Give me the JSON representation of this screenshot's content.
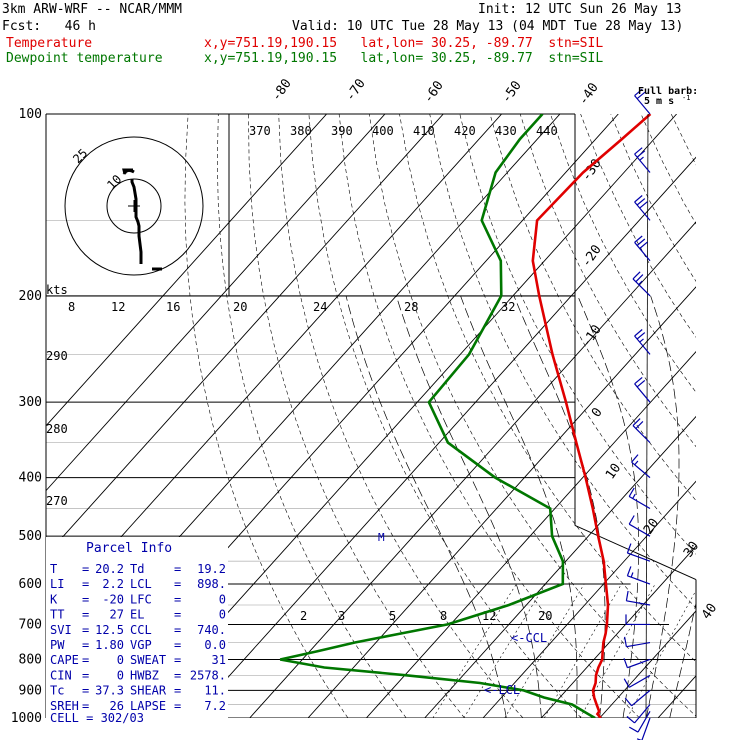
{
  "header": {
    "model": "3km ARW-WRF -- NCAR/MMM",
    "init": "Init: 12 UTC Sun 26 May 13",
    "fcst": "Fcst:   46 h",
    "valid": "Valid: 10 UTC Tue 28 May 13 (04 MDT Tue 28 May 13)",
    "temp_label": "Temperature",
    "temp_info": "x,y=751.19,190.15   lat,lon= 30.25, -89.77  stn=SIL",
    "dew_label": "Dewpoint temperature",
    "dew_info": "x,y=751.19,190.15   lat,lon= 30.25, -89.77  stn=SIL"
  },
  "colors": {
    "temperature": "#e00000",
    "dewpoint": "#007700",
    "parcel": "#0000aa"
  },
  "barb_legend": {
    "line1": "Full barb:",
    "line2": "5 m s"
  },
  "hodograph": {
    "units": "kts",
    "ring_labels": [
      "25",
      "10"
    ],
    "trace": [
      [
        8,
        25
      ],
      [
        8,
        28
      ],
      [
        10,
        33
      ],
      [
        12,
        45
      ],
      [
        12,
        63
      ],
      [
        14,
        68
      ],
      [
        15,
        72
      ],
      [
        15,
        82
      ],
      [
        17,
        98
      ],
      [
        17,
        110
      ]
    ]
  },
  "parcel_info": {
    "title": "Parcel Info",
    "rows": [
      {
        "a": "T",
        "av": "20.2",
        "b": "Td",
        "bv": "19.2"
      },
      {
        "a": "LI",
        "av": "2.2",
        "b": "LCL",
        "bv": "898."
      },
      {
        "a": "K",
        "av": "-20",
        "b": "LFC",
        "bv": "0"
      },
      {
        "a": "TT",
        "av": "27",
        "b": "EL",
        "bv": "0"
      },
      {
        "a": "SVI",
        "av": "12.5",
        "b": "CCL",
        "bv": "740."
      },
      {
        "a": "PW",
        "av": "1.80",
        "b": "VGP",
        "bv": "0.0"
      },
      {
        "a": "CAPE",
        "av": "0",
        "b": "SWEAT",
        "bv": "31"
      },
      {
        "a": "CIN",
        "av": "0",
        "b": "HWBZ",
        "bv": "2578."
      },
      {
        "a": "Tc",
        "av": "37.3",
        "b": "SHEAR",
        "bv": "11."
      },
      {
        "a": "SREH",
        "av": "26",
        "b": "LAPSE",
        "bv": "7.2"
      }
    ],
    "cell": "CELL = 302/03"
  },
  "annotations": {
    "ccl": "<-CCL",
    "lcl": "<-LCL",
    "m": "M"
  },
  "chart_data": {
    "type": "line",
    "title": "",
    "y_scale": "log-pressure",
    "ylim": [
      1000,
      100
    ],
    "pressure_ticks": [
      100,
      200,
      300,
      400,
      500,
      600,
      700,
      800,
      900,
      1000
    ],
    "isotherm_labels": [
      -80,
      -70,
      -60,
      -50,
      -40,
      -30,
      -20,
      -10,
      0,
      10,
      20,
      30,
      40
    ],
    "theta_labels": [
      370,
      380,
      390,
      400,
      410,
      420,
      430,
      440
    ],
    "theta_side_labels": [
      290,
      280,
      270
    ],
    "mixing_ratio_top": [
      8,
      12,
      16,
      20,
      24,
      28,
      32
    ],
    "mixing_ratio_bottom": [
      2,
      3,
      5,
      8,
      12,
      20
    ],
    "series": [
      {
        "name": "Temperature",
        "p": [
          1000,
          985,
          975,
          950,
          925,
          900,
          875,
          850,
          825,
          800,
          775,
          750,
          725,
          700,
          650,
          600,
          550,
          500,
          450,
          400,
          350,
          300,
          250,
          200,
          175,
          150,
          125,
          110,
          100
        ],
        "t": [
          20.2,
          19.0,
          18.9,
          17.4,
          15.9,
          14.6,
          13.9,
          12.8,
          12.0,
          11.4,
          10.2,
          9.0,
          8.0,
          6.8,
          4.0,
          0.4,
          -3.5,
          -8.3,
          -13.5,
          -19.5,
          -26.5,
          -34.5,
          -44.2,
          -55.5,
          -62.0,
          -67.5,
          -67.0,
          -65.5,
          -64.5
        ]
      },
      {
        "name": "Dewpoint temperature",
        "p": [
          1000,
          985,
          950,
          925,
          900,
          875,
          850,
          825,
          800,
          775,
          750,
          725,
          700,
          650,
          600,
          550,
          500,
          450,
          400,
          350,
          300,
          250,
          200,
          175,
          150,
          125,
          110,
          100
        ],
        "t": [
          19.2,
          17.4,
          13.2,
          7.3,
          2.7,
          -5.9,
          -19.5,
          -35.0,
          -43.8,
          -38.6,
          -33.6,
          -27.2,
          -20.5,
          -13.0,
          -7.0,
          -10.5,
          -16.2,
          -20.8,
          -35.0,
          -48.5,
          -58.0,
          -58.5,
          -62.0,
          -67.5,
          -77.0,
          -82.0,
          -83.0,
          -83.0
        ]
      }
    ],
    "wind_barbs": [
      {
        "p": 1000,
        "dir": 200,
        "spd": 5
      },
      {
        "p": 975,
        "dir": 210,
        "spd": 10
      },
      {
        "p": 950,
        "dir": 220,
        "spd": 10
      },
      {
        "p": 900,
        "dir": 230,
        "spd": 10
      },
      {
        "p": 850,
        "dir": 240,
        "spd": 10
      },
      {
        "p": 800,
        "dir": 250,
        "spd": 10
      },
      {
        "p": 750,
        "dir": 260,
        "spd": 10
      },
      {
        "p": 700,
        "dir": 270,
        "spd": 10
      },
      {
        "p": 650,
        "dir": 280,
        "spd": 10
      },
      {
        "p": 600,
        "dir": 290,
        "spd": 15
      },
      {
        "p": 550,
        "dir": 290,
        "spd": 10
      },
      {
        "p": 500,
        "dir": 300,
        "spd": 10
      },
      {
        "p": 450,
        "dir": 300,
        "spd": 15
      },
      {
        "p": 400,
        "dir": 310,
        "spd": 15
      },
      {
        "p": 350,
        "dir": 315,
        "spd": 20
      },
      {
        "p": 300,
        "dir": 320,
        "spd": 20
      },
      {
        "p": 250,
        "dir": 320,
        "spd": 25
      },
      {
        "p": 200,
        "dir": 315,
        "spd": 25
      },
      {
        "p": 175,
        "dir": 320,
        "spd": 30
      },
      {
        "p": 150,
        "dir": 320,
        "spd": 30
      },
      {
        "p": 125,
        "dir": 320,
        "spd": 25
      },
      {
        "p": 100,
        "dir": 320,
        "spd": 20
      }
    ]
  }
}
